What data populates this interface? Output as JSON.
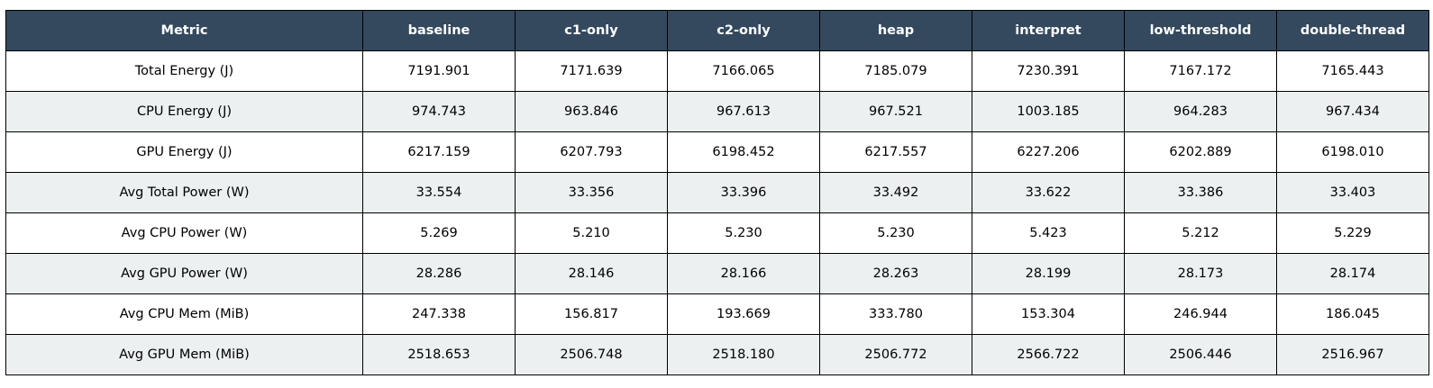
{
  "chart_data": {
    "type": "table",
    "columns": [
      "Metric",
      "baseline",
      "c1-only",
      "c2-only",
      "heap",
      "interpret",
      "low-threshold",
      "double-thread"
    ],
    "rows": [
      [
        "Total Energy (J)",
        "7191.901",
        "7171.639",
        "7166.065",
        "7185.079",
        "7230.391",
        "7167.172",
        "7165.443"
      ],
      [
        "CPU Energy (J)",
        "974.743",
        "963.846",
        "967.613",
        "967.521",
        "1003.185",
        "964.283",
        "967.434"
      ],
      [
        "GPU Energy (J)",
        "6217.159",
        "6207.793",
        "6198.452",
        "6217.557",
        "6227.206",
        "6202.889",
        "6198.010"
      ],
      [
        "Avg Total Power (W)",
        "33.554",
        "33.356",
        "33.396",
        "33.492",
        "33.622",
        "33.386",
        "33.403"
      ],
      [
        "Avg CPU Power (W)",
        "5.269",
        "5.210",
        "5.230",
        "5.230",
        "5.423",
        "5.212",
        "5.229"
      ],
      [
        "Avg GPU Power (W)",
        "28.286",
        "28.146",
        "28.166",
        "28.263",
        "28.199",
        "28.173",
        "28.174"
      ],
      [
        "Avg CPU Mem (MiB)",
        "247.338",
        "156.817",
        "193.669",
        "333.780",
        "153.304",
        "246.944",
        "186.045"
      ],
      [
        "Avg GPU Mem (MiB)",
        "2518.653",
        "2506.748",
        "2518.180",
        "2506.772",
        "2566.722",
        "2506.446",
        "2516.967"
      ]
    ]
  },
  "colors": {
    "header_bg": "#34495e",
    "header_text": "#ffffff",
    "row_alt_bg": "#ecf0f1",
    "row_bg": "#ffffff",
    "border": "#000000"
  }
}
